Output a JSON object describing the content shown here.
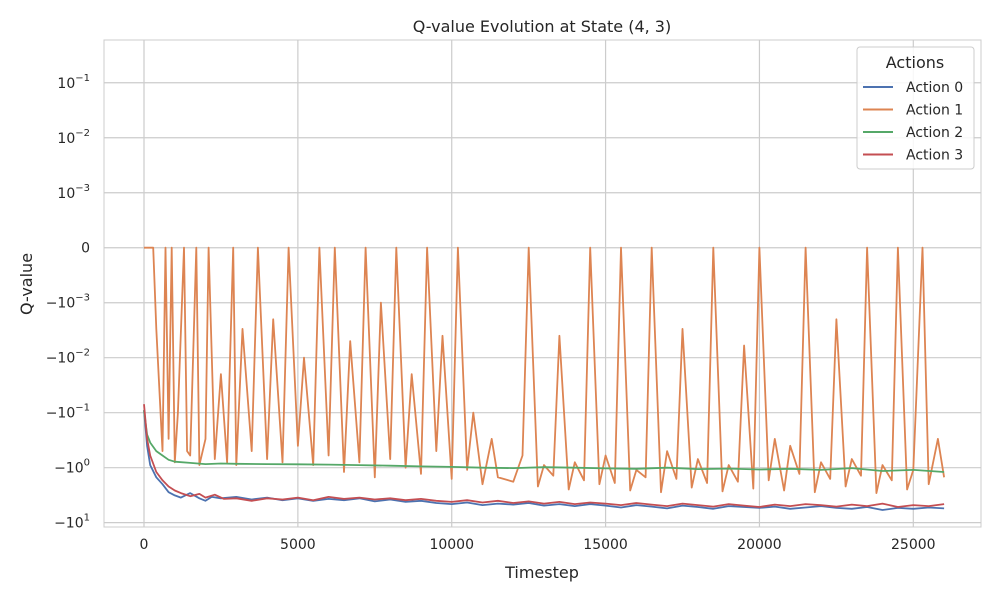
{
  "chart_data": {
    "type": "line",
    "title": "Q-value Evolution at State (4, 3)",
    "xlabel": "Timestep",
    "ylabel": "Q-value",
    "yscale": "symlog",
    "symlog_linthresh": 0.001,
    "xlim": [
      -1300,
      27200
    ],
    "ylim": [
      -12,
      0.6
    ],
    "x_ticks": [
      0,
      5000,
      10000,
      15000,
      20000,
      25000
    ],
    "x_tick_labels": [
      "0",
      "5000",
      "10000",
      "15000",
      "20000",
      "25000"
    ],
    "y_ticks": [
      -10,
      -1,
      -0.1,
      -0.01,
      -0.001,
      0,
      0.001,
      0.01,
      0.1
    ],
    "y_tick_labels": [
      {
        "base": "−10",
        "exp": "1"
      },
      {
        "base": "−10",
        "exp": "0"
      },
      {
        "base": "−10",
        "exp": "−1"
      },
      {
        "base": "−10",
        "exp": "−2"
      },
      {
        "base": "−10",
        "exp": "−3"
      },
      {
        "base": "0",
        "exp": ""
      },
      {
        "base": "10",
        "exp": "−3"
      },
      {
        "base": "10",
        "exp": "−2"
      },
      {
        "base": "10",
        "exp": "−1"
      }
    ],
    "grid": true,
    "legend": {
      "title": "Actions",
      "placement": "top-right"
    },
    "series": [
      {
        "name": "Action 0",
        "color": "#4c72b0",
        "x": [
          0,
          100,
          200,
          400,
          600,
          800,
          1000,
          1200,
          1500,
          1800,
          2000,
          2200,
          2500,
          3000,
          3500,
          4000,
          4500,
          5000,
          5500,
          6000,
          6500,
          7000,
          7500,
          8000,
          8500,
          9000,
          9500,
          10000,
          10500,
          11000,
          11500,
          12000,
          12500,
          13000,
          13500,
          14000,
          14500,
          15000,
          15500,
          16000,
          16500,
          17000,
          17500,
          18000,
          18500,
          19000,
          19500,
          20000,
          20500,
          21000,
          21500,
          22000,
          22500,
          23000,
          23500,
          24000,
          24500,
          25000,
          25500,
          26000
        ],
        "y": [
          -0.09,
          -0.4,
          -0.9,
          -1.5,
          -2.0,
          -2.8,
          -3.2,
          -3.5,
          -2.9,
          -3.6,
          -4.0,
          -3.4,
          -3.6,
          -3.4,
          -3.8,
          -3.5,
          -3.9,
          -3.6,
          -4.0,
          -3.7,
          -3.9,
          -3.6,
          -4.1,
          -3.8,
          -4.2,
          -4.0,
          -4.4,
          -4.6,
          -4.3,
          -4.8,
          -4.5,
          -4.7,
          -4.4,
          -4.9,
          -4.6,
          -5.0,
          -4.6,
          -4.9,
          -5.3,
          -4.8,
          -5.1,
          -5.5,
          -4.9,
          -5.2,
          -5.6,
          -5.0,
          -5.2,
          -5.4,
          -5.1,
          -5.6,
          -5.3,
          -5.0,
          -5.4,
          -5.6,
          -5.2,
          -5.9,
          -5.4,
          -5.6,
          -5.3,
          -5.5
        ]
      },
      {
        "name": "Action 1",
        "color": "#dd8452",
        "x": [
          0,
          300,
          400,
          600,
          700,
          800,
          900,
          1000,
          1100,
          1300,
          1400,
          1500,
          1700,
          1800,
          2000,
          2100,
          2300,
          2500,
          2700,
          2900,
          3000,
          3200,
          3500,
          3700,
          4000,
          4200,
          4500,
          4700,
          5000,
          5200,
          5500,
          5700,
          6000,
          6200,
          6500,
          6700,
          7000,
          7200,
          7500,
          7700,
          8000,
          8200,
          8500,
          8700,
          9000,
          9200,
          9500,
          9700,
          10000,
          10200,
          10500,
          10700,
          11000,
          11300,
          11500,
          12000,
          12300,
          12500,
          12800,
          13000,
          13300,
          13500,
          13800,
          14000,
          14300,
          14500,
          14800,
          15000,
          15300,
          15500,
          15800,
          16000,
          16300,
          16500,
          16800,
          17000,
          17300,
          17500,
          17800,
          18000,
          18300,
          18500,
          18800,
          19000,
          19300,
          19500,
          19800,
          20000,
          20300,
          20500,
          20800,
          21000,
          21300,
          21500,
          21800,
          22000,
          22300,
          22500,
          22800,
          23000,
          23300,
          23500,
          23800,
          24000,
          24300,
          24500,
          24800,
          25000,
          25300,
          25500,
          25800,
          26000
        ],
        "y": [
          0,
          0,
          -0.003,
          -0.5,
          0,
          -0.3,
          0,
          -0.8,
          -0.1,
          0,
          -0.5,
          -0.6,
          0,
          -0.9,
          -0.3,
          0,
          -0.7,
          -0.02,
          -0.8,
          0,
          -0.9,
          -0.003,
          -0.5,
          0,
          -0.7,
          -0.002,
          -0.8,
          0,
          -0.4,
          -0.01,
          -0.9,
          0,
          -0.6,
          0,
          -1.2,
          -0.005,
          -0.8,
          0,
          -1.5,
          -0.001,
          -0.7,
          0,
          -1.0,
          -0.02,
          -1.3,
          0,
          -0.5,
          -0.004,
          -1.6,
          0,
          -1.1,
          -0.1,
          -2.0,
          -0.3,
          -1.5,
          -1.8,
          -0.6,
          0,
          -2.2,
          -0.9,
          -1.4,
          -0.004,
          -2.5,
          -0.8,
          -1.7,
          0,
          -2.0,
          -0.6,
          -1.9,
          0,
          -2.6,
          -1.1,
          -1.5,
          0,
          -2.8,
          -0.5,
          -1.6,
          -0.003,
          -2.3,
          -0.7,
          -1.9,
          0,
          -2.7,
          -0.9,
          -1.8,
          -0.006,
          -2.4,
          0,
          -1.7,
          -0.3,
          -2.6,
          -0.4,
          -1.3,
          0,
          -2.8,
          -0.8,
          -1.6,
          -0.002,
          -2.2,
          -0.7,
          -1.4,
          0,
          -2.9,
          -0.9,
          -1.7,
          0,
          -2.5,
          -1.1,
          0,
          -2.0,
          -0.3,
          -1.5
        ]
      },
      {
        "name": "Action 2",
        "color": "#55a868",
        "x": [
          0,
          100,
          200,
          400,
          600,
          800,
          1000,
          1500,
          2000,
          2500,
          3000,
          4000,
          5000,
          6000,
          7000,
          8000,
          9000,
          10000,
          11000,
          12000,
          13000,
          14000,
          15000,
          16000,
          17000,
          18000,
          19000,
          20000,
          21000,
          22000,
          23000,
          24000,
          25000,
          26000
        ],
        "y": [
          -0.09,
          -0.25,
          -0.35,
          -0.5,
          -0.6,
          -0.72,
          -0.78,
          -0.82,
          -0.86,
          -0.84,
          -0.85,
          -0.86,
          -0.87,
          -0.88,
          -0.9,
          -0.92,
          -0.95,
          -0.97,
          -1.0,
          -1.02,
          -0.98,
          -1.0,
          -1.03,
          -1.05,
          -1.0,
          -1.06,
          -1.04,
          -1.08,
          -1.05,
          -1.1,
          -1.02,
          -1.15,
          -1.1,
          -1.2
        ]
      },
      {
        "name": "Action 3",
        "color": "#c44e52",
        "x": [
          0,
          100,
          200,
          400,
          600,
          800,
          1000,
          1200,
          1500,
          1800,
          2000,
          2300,
          2600,
          3000,
          3500,
          4000,
          4500,
          5000,
          5500,
          6000,
          6500,
          7000,
          7500,
          8000,
          8500,
          9000,
          9500,
          10000,
          10500,
          11000,
          11500,
          12000,
          12500,
          13000,
          13500,
          14000,
          14500,
          15000,
          15500,
          16000,
          16500,
          17000,
          17500,
          18000,
          18500,
          19000,
          19500,
          20000,
          20500,
          21000,
          21500,
          22000,
          22500,
          23000,
          23500,
          24000,
          24500,
          25000,
          25500,
          26000
        ],
        "y": [
          -0.07,
          -0.3,
          -0.6,
          -1.2,
          -1.7,
          -2.2,
          -2.6,
          -2.9,
          -3.3,
          -3.0,
          -3.5,
          -3.1,
          -3.7,
          -3.6,
          -4.0,
          -3.6,
          -3.8,
          -3.5,
          -3.9,
          -3.4,
          -3.7,
          -3.5,
          -3.8,
          -3.6,
          -3.9,
          -3.7,
          -4.0,
          -4.2,
          -3.9,
          -4.3,
          -4.0,
          -4.4,
          -4.1,
          -4.5,
          -4.2,
          -4.6,
          -4.3,
          -4.5,
          -4.8,
          -4.4,
          -4.7,
          -5.0,
          -4.5,
          -4.8,
          -5.1,
          -4.6,
          -4.9,
          -5.2,
          -4.7,
          -5.0,
          -4.6,
          -4.8,
          -5.1,
          -4.7,
          -5.0,
          -4.5,
          -5.2,
          -4.8,
          -5.0,
          -4.6
        ]
      }
    ]
  }
}
